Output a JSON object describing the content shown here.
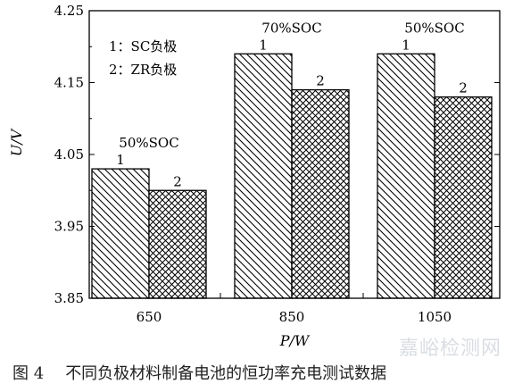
{
  "chart_data": {
    "type": "bar",
    "categories": [
      "650",
      "850",
      "1050"
    ],
    "series": [
      {
        "legend_key": "1",
        "name": "SC负极",
        "pattern": "diagonal-hatch",
        "values": [
          4.03,
          4.19,
          4.19
        ]
      },
      {
        "legend_key": "2",
        "name": "ZR负极",
        "pattern": "cross-hatch",
        "values": [
          4.0,
          4.14,
          4.13
        ]
      }
    ],
    "bar_labels": [
      "1",
      "2"
    ],
    "group_annotations": [
      "50%SOC",
      "70%SOC",
      "50%SOC"
    ],
    "ylabel": "U/V",
    "xlabel": "P/W",
    "ylim": [
      3.85,
      4.25
    ],
    "yticks": [
      "3.85",
      "3.95",
      "4.05",
      "4.15",
      "4.25"
    ],
    "legend": {
      "placement": "top-left",
      "items": [
        "1：SC负极",
        "2：ZR负极"
      ]
    },
    "grid": false
  },
  "caption": {
    "number": "图 4",
    "text": "不同负极材料制备电池的恒功率充电测试数据"
  },
  "watermark": "嘉峪检测网"
}
